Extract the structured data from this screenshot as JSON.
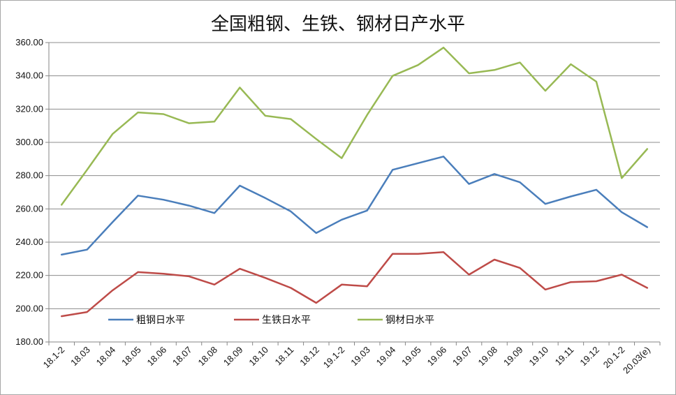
{
  "chart_data": {
    "type": "line",
    "title": "全国粗钢、生铁、钢材日产水平",
    "xlabel": "",
    "ylabel": "",
    "ylim": [
      180,
      360
    ],
    "yticks": [
      "180.00",
      "200.00",
      "220.00",
      "240.00",
      "260.00",
      "280.00",
      "300.00",
      "320.00",
      "340.00",
      "360.00"
    ],
    "grid": true,
    "legend_position": "bottom-inside",
    "categories": [
      "18.1-2",
      "18.03",
      "18.04",
      "18.05",
      "18.06",
      "18.07",
      "18.08",
      "18.09",
      "18.10",
      "18.11",
      "18.12",
      "19.1-2",
      "19.03",
      "19.04",
      "19.05",
      "19.06",
      "19.07",
      "19.08",
      "19.09",
      "19.10",
      "19.11",
      "19.12",
      "20.1-2",
      "20.03(e)"
    ],
    "series": [
      {
        "name": "粗钢日水平",
        "color": "#4a7ebb",
        "values": [
          232.5,
          235.5,
          252.0,
          268.0,
          265.5,
          262.0,
          257.5,
          274.0,
          266.5,
          258.5,
          245.5,
          253.5,
          259.0,
          283.5,
          287.5,
          291.5,
          275.0,
          281.0,
          276.0,
          263.0,
          267.5,
          271.5,
          258.0,
          249.0
        ]
      },
      {
        "name": "生铁日水平",
        "color": "#be4b48",
        "values": [
          195.5,
          198.0,
          211.0,
          222.0,
          221.0,
          219.5,
          214.5,
          224.0,
          218.5,
          212.5,
          203.5,
          214.5,
          213.5,
          233.0,
          233.0,
          234.0,
          220.5,
          229.5,
          224.5,
          211.5,
          216.0,
          216.5,
          220.5,
          212.5
        ]
      },
      {
        "name": "钢材日水平",
        "color": "#98b954",
        "values": [
          262.5,
          283.5,
          305.0,
          318.0,
          317.0,
          311.5,
          312.5,
          333.0,
          316.0,
          314.0,
          302.0,
          290.5,
          316.5,
          340.0,
          346.5,
          357.0,
          341.5,
          343.5,
          348.0,
          331.0,
          347.0,
          336.5,
          278.5,
          296.0
        ]
      }
    ]
  }
}
